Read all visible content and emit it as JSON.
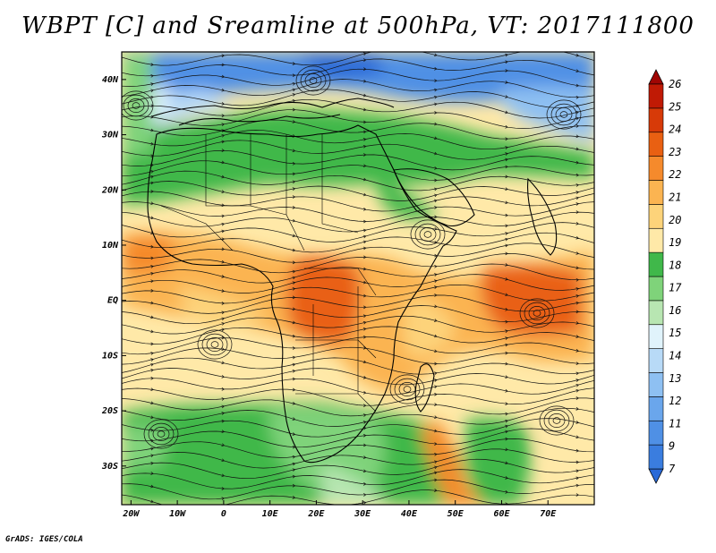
{
  "title": "WBPT [C] and Sreamline at 500hPa, VT: 2017111800",
  "credit": "GrADS: IGES/COLA",
  "map": {
    "lon_range": [
      -22,
      80
    ],
    "lat_range": [
      -37,
      45
    ],
    "lon_ticks": [
      "20W",
      "10W",
      "0",
      "10E",
      "20E",
      "30E",
      "40E",
      "50E",
      "60E",
      "70E"
    ],
    "lat_ticks": [
      "40N",
      "30N",
      "20N",
      "10N",
      "EQ",
      "10S",
      "20S",
      "30S"
    ]
  },
  "colorbar": {
    "labels": [
      "7",
      "9",
      "11",
      "12",
      "13",
      "14",
      "15",
      "16",
      "17",
      "18",
      "19",
      "20",
      "21",
      "22",
      "23",
      "24",
      "25",
      "26"
    ],
    "colors": [
      "#2a6ad8",
      "#3a7ddf",
      "#4f90e5",
      "#6aa6ec",
      "#8ec0f2",
      "#b8daf7",
      "#e0f3fb",
      "#b8e6b2",
      "#7fd37a",
      "#40b84a",
      "#ffe9a8",
      "#fdd37a",
      "#fbb451",
      "#f58a2c",
      "#e96012",
      "#d73a08",
      "#c01a05",
      "#a00604"
    ]
  }
}
